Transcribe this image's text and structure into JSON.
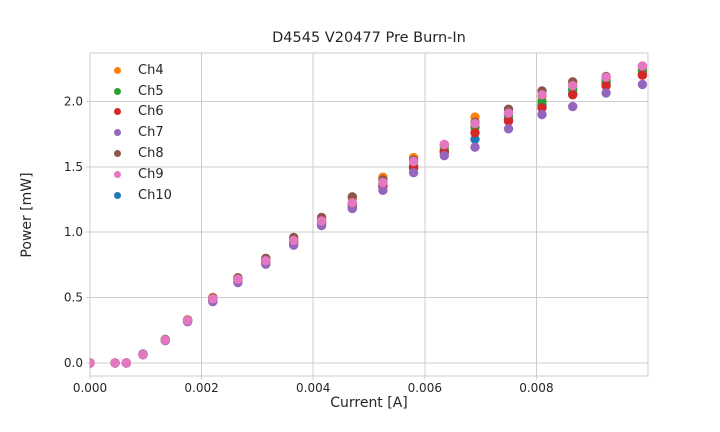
{
  "title": "D4545 V20477 Pre Burn-In",
  "chart_data": {
    "type": "scatter",
    "title": "D4545 V20477 Pre Burn-In",
    "xlabel": "Current [A]",
    "ylabel": "Power [mW]",
    "xlim": [
      0,
      0.01
    ],
    "ylim": [
      -0.1,
      2.37
    ],
    "x_tick_labels": [
      "0.000",
      "0.002",
      "0.004",
      "0.006",
      "0.008"
    ],
    "x_tick_values": [
      0,
      0.002,
      0.004,
      0.006,
      0.008
    ],
    "y_tick_labels": [
      "0.0",
      "0.5",
      "1.0",
      "1.5",
      "2.0"
    ],
    "y_tick_values": [
      0,
      0.5,
      1.0,
      1.5,
      2.0
    ],
    "grid": true,
    "legend_position": "upper left",
    "marker": "circle",
    "x": [
      0.0,
      0.00045,
      0.00065,
      0.00095,
      0.00135,
      0.00175,
      0.0022,
      0.00265,
      0.00315,
      0.00365,
      0.00415,
      0.0047,
      0.00525,
      0.0058,
      0.00635,
      0.0069,
      0.0075,
      0.0081,
      0.00865,
      0.00925,
      0.0099
    ],
    "series": [
      {
        "name": "Ch4",
        "color": "#ff7f0e",
        "values": [
          0,
          0,
          0,
          0.066,
          0.178,
          0.33,
          0.5,
          0.65,
          0.79,
          0.95,
          1.1,
          1.26,
          1.42,
          1.57,
          1.66,
          1.88,
          1.9,
          2.04,
          2.12,
          2.17,
          2.26
        ]
      },
      {
        "name": "Ch5",
        "color": "#2ca02c",
        "values": [
          0,
          0,
          0,
          0.065,
          0.176,
          0.324,
          0.487,
          0.638,
          0.778,
          0.932,
          1.082,
          1.22,
          1.37,
          1.51,
          1.63,
          1.8,
          1.89,
          2.0,
          2.09,
          2.16,
          2.235
        ]
      },
      {
        "name": "Ch6",
        "color": "#d62728",
        "values": [
          0,
          0,
          0,
          0.063,
          0.173,
          0.32,
          0.48,
          0.628,
          0.768,
          0.92,
          1.068,
          1.2,
          1.35,
          1.49,
          1.61,
          1.76,
          1.85,
          1.95,
          2.05,
          2.12,
          2.2
        ]
      },
      {
        "name": "Ch7",
        "color": "#9467bd",
        "values": [
          0,
          0,
          0,
          0.062,
          0.17,
          0.315,
          0.468,
          0.615,
          0.755,
          0.9,
          1.05,
          1.18,
          1.32,
          1.455,
          1.585,
          1.65,
          1.79,
          1.9,
          1.96,
          2.065,
          2.13
        ]
      },
      {
        "name": "Ch8",
        "color": "#8c564b",
        "values": [
          0,
          0,
          0,
          0.066,
          0.177,
          0.327,
          0.497,
          0.652,
          0.8,
          0.96,
          1.112,
          1.27,
          1.4,
          1.55,
          1.67,
          1.84,
          1.94,
          2.08,
          2.15,
          2.19,
          2.27
        ]
      },
      {
        "name": "Ch9",
        "color": "#e377c2",
        "values": [
          0,
          0,
          0,
          0.065,
          0.175,
          0.325,
          0.49,
          0.64,
          0.782,
          0.937,
          1.085,
          1.225,
          1.38,
          1.54,
          1.67,
          1.83,
          1.91,
          2.05,
          2.12,
          2.185,
          2.27
        ]
      },
      {
        "name": "Ch10",
        "color": "#1f77b4",
        "values": [
          0,
          0,
          0,
          0.068,
          0.181,
          0.329,
          0.493,
          0.643,
          0.778,
          0.93,
          1.08,
          1.21,
          1.36,
          1.5,
          1.62,
          1.71,
          1.86,
          1.97,
          2.06,
          2.14,
          2.21
        ]
      }
    ],
    "draw_order": [
      "Ch10",
      "Ch4",
      "Ch5",
      "Ch6",
      "Ch8",
      "Ch7",
      "Ch9"
    ]
  },
  "style": {
    "background": "#ffffff",
    "grid_color": "#cccccc",
    "spine_color": "#cccccc",
    "tick_color": "#cccccc",
    "text_color": "#262626"
  }
}
